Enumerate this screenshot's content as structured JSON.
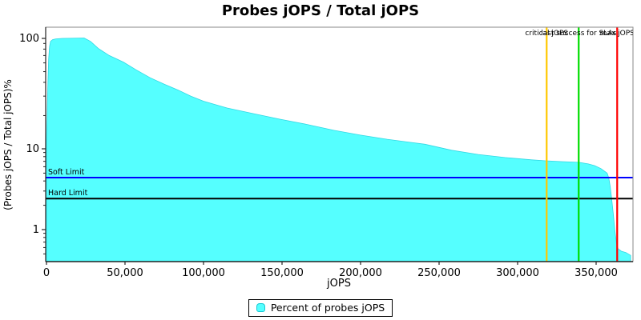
{
  "title": "Probes jOPS / Total jOPS",
  "chart_data": {
    "type": "area",
    "title": "Probes jOPS / Total jOPS",
    "xlabel": "jOPS",
    "ylabel": "(Probes jOPS / Total jOPS)%",
    "x_scale": "linear",
    "y_scale": "log",
    "xlim": [
      0,
      373500
    ],
    "x_tick_values": [
      0,
      50000,
      100000,
      150000,
      200000,
      250000,
      300000,
      350000
    ],
    "x_tick_labels": [
      "0",
      "50,000",
      "100,000",
      "150,000",
      "200,000",
      "250,000",
      "300,000",
      "350,000"
    ],
    "y_tick_values": [
      100,
      10,
      1
    ],
    "y_tick_labels": [
      "100",
      "10",
      "1"
    ],
    "y_minor_ticks": [
      90,
      80,
      70,
      60,
      50,
      40,
      30,
      20,
      9,
      8,
      7,
      6,
      5,
      4,
      3,
      2,
      0.9,
      0.8,
      0.7,
      0.6,
      0.5
    ],
    "grid": "off",
    "legend_position": "bottom-center",
    "series": [
      {
        "name": "Percent of probes jOPS",
        "color": "#55FFFF",
        "points": [
          [
            0,
            12
          ],
          [
            400,
            20
          ],
          [
            900,
            40
          ],
          [
            1400,
            65
          ],
          [
            2000,
            85
          ],
          [
            2600,
            94
          ],
          [
            4000,
            97.5
          ],
          [
            6000,
            99
          ],
          [
            10000,
            100
          ],
          [
            20000,
            100.6
          ],
          [
            24000,
            100.8
          ],
          [
            28000,
            94
          ],
          [
            33000,
            81
          ],
          [
            40000,
            70
          ],
          [
            49000,
            61
          ],
          [
            57000,
            52
          ],
          [
            66000,
            44
          ],
          [
            75000,
            38.5
          ],
          [
            84000,
            34
          ],
          [
            92000,
            30
          ],
          [
            100000,
            27
          ],
          [
            115000,
            23.4
          ],
          [
            132000,
            20.8
          ],
          [
            149000,
            18.5
          ],
          [
            166000,
            16.6
          ],
          [
            183000,
            14.7
          ],
          [
            200000,
            13.3
          ],
          [
            217000,
            12.2
          ],
          [
            241000,
            11.0
          ],
          [
            258000,
            9.6
          ],
          [
            275000,
            8.5
          ],
          [
            292000,
            7.8
          ],
          [
            309000,
            7.3
          ],
          [
            318000,
            7.1
          ],
          [
            328000,
            6.95
          ],
          [
            339000,
            6.8
          ],
          [
            345000,
            6.5
          ],
          [
            349000,
            6.2
          ],
          [
            353000,
            5.7
          ],
          [
            357000,
            5.0
          ],
          [
            358000,
            4.4
          ],
          [
            359000,
            3.4
          ],
          [
            360000,
            2.3
          ],
          [
            361000,
            1.5
          ],
          [
            362000,
            0.95
          ],
          [
            363000,
            0.67
          ],
          [
            364000,
            0.58
          ],
          [
            366000,
            0.54
          ],
          [
            369000,
            0.52
          ],
          [
            372000,
            0.48
          ]
        ]
      }
    ],
    "hlines": [
      {
        "label": "Soft Limit",
        "percent": 4.4,
        "color": "#0000FF"
      },
      {
        "label": "Hard Limit",
        "percent": 2.42,
        "color": "#000000"
      }
    ],
    "vlines": [
      {
        "label": "critical jOPS",
        "jops": 318500,
        "color": "#FFC800"
      },
      {
        "label": "last success for SLAs",
        "jops": 338900,
        "color": "#00DD00"
      },
      {
        "label": "max jOPS",
        "jops": 363400,
        "color": "#FF0000"
      }
    ]
  },
  "legend": {
    "items": [
      {
        "label": "Percent of probes jOPS",
        "color": "#55FFFF"
      }
    ]
  }
}
